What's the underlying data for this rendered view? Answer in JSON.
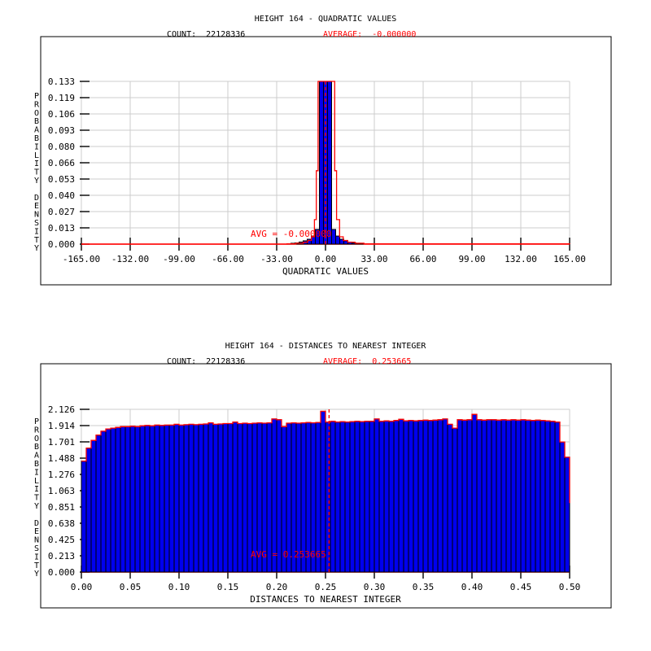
{
  "colors": {
    "background": "#ffffff",
    "bar_fill": "#0000ee",
    "bar_edge": "#000000",
    "curve": "#ff0000",
    "grid": "#cccccc",
    "frame": "#000000",
    "text": "#000000",
    "accent_text": "#ff0000"
  },
  "chart_data": [
    {
      "type": "bar",
      "title": "HEIGHT 164 - QUADRATIC VALUES",
      "count": 22128336,
      "count_label": "COUNT:  22128336",
      "average": -0.0,
      "average_label": "AVERAGE:  -0.000000",
      "avg_annotation": "AVG = -0.000000",
      "xlabel": "QUADRATIC VALUES",
      "ylabel": "PROBABILITY DENSITY",
      "xlim": [
        -165,
        165
      ],
      "ylim": [
        0,
        0.133
      ],
      "grid": true,
      "x_tick_labels": [
        "-165.00",
        "-132.00",
        "-99.00",
        "-66.00",
        "-33.00",
        "0.00",
        "33.00",
        "66.00",
        "99.00",
        "132.00",
        "165.00"
      ],
      "y_tick_labels": [
        "0.133",
        "0.119",
        "0.106",
        "0.093",
        "0.080",
        "0.066",
        "0.053",
        "0.040",
        "0.027",
        "0.013",
        "0.000"
      ],
      "bin_width": 2.75,
      "bins": [
        [
          -24.75,
          0.0003
        ],
        [
          -22,
          0.0007
        ],
        [
          -19.25,
          0.001
        ],
        [
          -16.5,
          0.0017
        ],
        [
          -13.75,
          0.0027
        ],
        [
          -11,
          0.004
        ],
        [
          -8.25,
          0.0066
        ],
        [
          -5.5,
          0.012
        ],
        [
          -2.75,
          0.133
        ],
        [
          0,
          0.133
        ],
        [
          2.75,
          0.133
        ],
        [
          5.5,
          0.012
        ],
        [
          8.25,
          0.0066
        ],
        [
          11,
          0.004
        ],
        [
          13.75,
          0.0027
        ],
        [
          16.5,
          0.0017
        ],
        [
          19.25,
          0.001
        ],
        [
          22,
          0.0007
        ],
        [
          24.75,
          0.0003
        ]
      ],
      "fit_curve": [
        [
          -165,
          0
        ],
        [
          -26,
          0.0002
        ],
        [
          -20,
          0.0007
        ],
        [
          -15,
          0.0016
        ],
        [
          -12,
          0.003
        ],
        [
          -9.5,
          0.006
        ],
        [
          -7.5,
          0.02
        ],
        [
          -6.2,
          0.06
        ],
        [
          -5,
          0.133
        ],
        [
          5,
          0.133
        ],
        [
          6.2,
          0.06
        ],
        [
          7.5,
          0.02
        ],
        [
          9.5,
          0.006
        ],
        [
          12,
          0.003
        ],
        [
          15,
          0.0016
        ],
        [
          20,
          0.0007
        ],
        [
          26,
          0.0002
        ],
        [
          165,
          0
        ]
      ],
      "avg_line_x": 0
    },
    {
      "type": "bar",
      "title": "HEIGHT 164 - DISTANCES TO NEAREST INTEGER",
      "count": 22128336,
      "count_label": "COUNT:  22128336",
      "average": 0.253665,
      "average_label": "AVERAGE:  0.253665",
      "avg_annotation": "AVG = 0.253665",
      "xlabel": "DISTANCES TO NEAREST INTEGER",
      "ylabel": "PROBABILITY DENSITY",
      "xlim": [
        0,
        0.5
      ],
      "ylim": [
        0,
        2.126
      ],
      "grid": true,
      "x_tick_labels": [
        "0.00",
        "0.05",
        "0.10",
        "0.15",
        "0.20",
        "0.25",
        "0.30",
        "0.35",
        "0.40",
        "0.45",
        "0.50"
      ],
      "y_tick_labels": [
        "2.126",
        "1.914",
        "1.701",
        "1.488",
        "1.276",
        "1.063",
        "0.851",
        "0.638",
        "0.425",
        "0.213",
        "0.000"
      ],
      "bin_width": 0.005,
      "x_start": 0.0,
      "values": [
        1.45,
        1.62,
        1.72,
        1.79,
        1.84,
        1.87,
        1.88,
        1.89,
        1.9,
        1.9,
        1.905,
        1.9,
        1.91,
        1.915,
        1.91,
        1.92,
        1.915,
        1.92,
        1.92,
        1.93,
        1.92,
        1.925,
        1.93,
        1.925,
        1.93,
        1.935,
        1.95,
        1.93,
        1.935,
        1.94,
        1.94,
        1.96,
        1.94,
        1.945,
        1.94,
        1.945,
        1.95,
        1.945,
        1.95,
        2.0,
        1.99,
        1.9,
        1.945,
        1.95,
        1.945,
        1.95,
        1.955,
        1.95,
        1.955,
        2.1,
        1.96,
        1.97,
        1.96,
        1.965,
        1.96,
        1.965,
        1.97,
        1.965,
        1.97,
        1.97,
        2.0,
        1.97,
        1.975,
        1.97,
        1.98,
        1.995,
        1.975,
        1.98,
        1.975,
        1.98,
        1.985,
        1.98,
        1.985,
        1.99,
        2.0,
        1.93,
        1.88,
        1.99,
        1.985,
        1.99,
        2.06,
        1.99,
        1.985,
        1.99,
        1.99,
        1.985,
        1.99,
        1.985,
        1.99,
        1.985,
        1.99,
        1.985,
        1.98,
        1.985,
        1.98,
        1.975,
        1.97,
        1.96,
        1.7,
        1.5
      ],
      "curve_end_value": 0.9,
      "avg_line_x": 0.253665
    }
  ]
}
